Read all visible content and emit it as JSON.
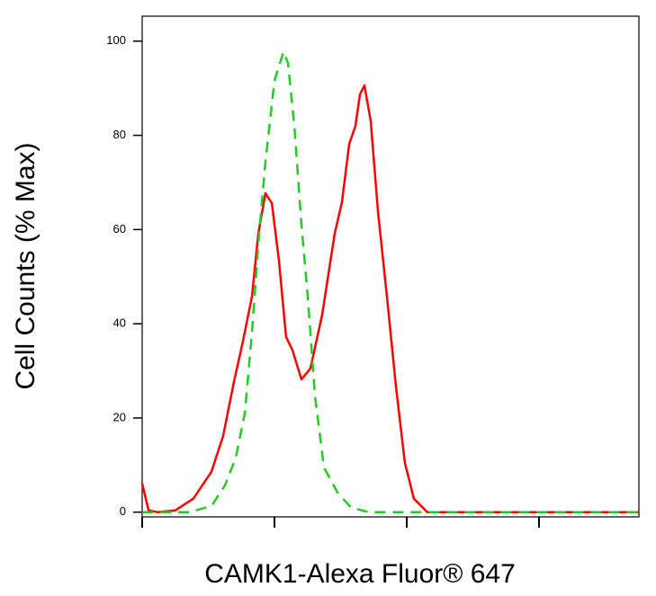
{
  "chart_data": {
    "type": "line",
    "xlabel": "CAMK1-Alexa Fluor® 647",
    "ylabel": "Cell Counts (% Max)",
    "xlim": [
      0,
      3.755
    ],
    "xticks": [
      0,
      1,
      2,
      3
    ],
    "ylim": [
      -1,
      105.3
    ],
    "yticks": [
      0,
      20,
      40,
      60,
      80,
      100
    ],
    "series": [
      {
        "color": "#ff0000",
        "dash": false,
        "x": [
          0,
          0.048,
          0.116,
          0.252,
          0.388,
          0.524,
          0.612,
          0.694,
          0.762,
          0.83,
          0.878,
          0.932,
          0.98,
          1.034,
          1.088,
          1.136,
          1.204,
          1.272,
          1.361,
          1.456,
          1.51,
          1.565,
          1.612,
          1.646,
          1.68,
          1.728,
          1.782,
          1.85,
          1.918,
          1.986,
          2.054,
          2.156,
          2.327,
          3.755
        ],
        "values": [
          6.1,
          0.4,
          0,
          0.4,
          2.9,
          8.6,
          16.2,
          27.7,
          36.3,
          45.8,
          59.2,
          67.7,
          65.6,
          53.4,
          37.2,
          34.4,
          28.2,
          30.5,
          42,
          59.2,
          65.8,
          78.2,
          82,
          88.7,
          90.6,
          83,
          63.9,
          45.8,
          26.7,
          10.5,
          2.9,
          0,
          0,
          0
        ]
      },
      {
        "color": "#22cc22",
        "dash": true,
        "x": [
          0,
          0.354,
          0.524,
          0.626,
          0.707,
          0.776,
          0.83,
          0.884,
          0.932,
          1.0,
          1.068,
          1.102,
          1.15,
          1.204,
          1.252,
          1.306,
          1.374,
          1.476,
          1.578,
          1.714,
          3.755
        ],
        "values": [
          0,
          0,
          1.3,
          5.7,
          11.5,
          21,
          38.2,
          59.2,
          74.4,
          91.6,
          97.7,
          95.4,
          82,
          61,
          45.8,
          24.8,
          9.5,
          4.2,
          1,
          0,
          0
        ]
      }
    ]
  }
}
